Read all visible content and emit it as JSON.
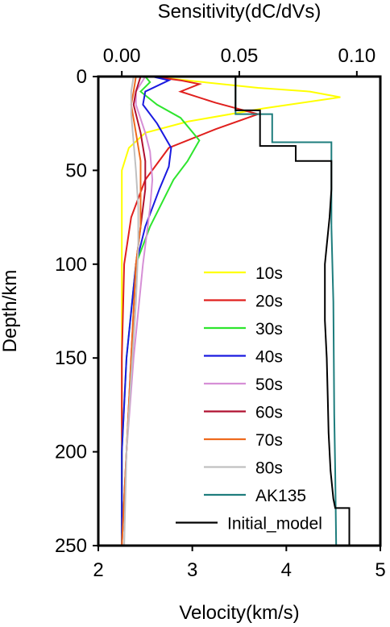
{
  "chart_data": {
    "type": "line",
    "title": "",
    "axes": {
      "top_x": {
        "label": "Sensitivity(dC/dVs)",
        "range": [
          -0.01,
          0.11
        ],
        "ticks": [
          0.0,
          0.05,
          0.1
        ],
        "tick_labels": [
          "0.00",
          "0.05",
          "0.10"
        ]
      },
      "bottom_x": {
        "label": "Velocity(km/s)",
        "range": [
          2,
          5
        ],
        "ticks": [
          2,
          3,
          4,
          5
        ],
        "tick_labels": [
          "2",
          "3",
          "4",
          "5"
        ]
      },
      "y": {
        "label": "Depth/km",
        "range": [
          0,
          250
        ],
        "inverted": true,
        "ticks": [
          0,
          50,
          100,
          150,
          200,
          250
        ],
        "tick_labels": [
          "0",
          "50",
          "100",
          "150",
          "200",
          "250"
        ]
      }
    },
    "grid": false,
    "legend_position": "right",
    "sensitivity_series": [
      {
        "name": "10s",
        "color": "#ffff00",
        "points": [
          [
            0.013,
            0
          ],
          [
            0.035,
            3
          ],
          [
            0.058,
            6
          ],
          [
            0.08,
            8
          ],
          [
            0.093,
            11
          ],
          [
            0.06,
            17
          ],
          [
            0.028,
            24
          ],
          [
            0.01,
            30
          ],
          [
            0.003,
            38
          ],
          [
            0.0,
            50
          ],
          [
            0.0,
            70
          ],
          [
            0.0,
            100
          ],
          [
            0.0,
            150
          ],
          [
            0.0,
            200
          ],
          [
            0.0,
            250
          ]
        ]
      },
      {
        "name": "20s",
        "color": "#e0201e",
        "points": [
          [
            0.013,
            0
          ],
          [
            0.025,
            2
          ],
          [
            0.033,
            4
          ],
          [
            0.025,
            8
          ],
          [
            0.04,
            14
          ],
          [
            0.058,
            20
          ],
          [
            0.04,
            28
          ],
          [
            0.02,
            38
          ],
          [
            0.01,
            55
          ],
          [
            0.004,
            75
          ],
          [
            0.001,
            100
          ],
          [
            0.0,
            150
          ],
          [
            0.0,
            200
          ],
          [
            0.0,
            250
          ]
        ]
      },
      {
        "name": "30s",
        "color": "#2ee52e",
        "points": [
          [
            0.01,
            0
          ],
          [
            0.012,
            3
          ],
          [
            0.008,
            8
          ],
          [
            0.015,
            15
          ],
          [
            0.025,
            22
          ],
          [
            0.033,
            34
          ],
          [
            0.028,
            45
          ],
          [
            0.022,
            55
          ],
          [
            0.012,
            80
          ],
          [
            0.006,
            100
          ],
          [
            0.002,
            150
          ],
          [
            0.0,
            200
          ],
          [
            0.0,
            250
          ]
        ]
      },
      {
        "name": "40s",
        "color": "#1a1ae0",
        "points": [
          [
            0.013,
            0
          ],
          [
            0.02,
            2
          ],
          [
            0.01,
            8
          ],
          [
            0.009,
            15
          ],
          [
            0.015,
            25
          ],
          [
            0.021,
            38
          ],
          [
            0.02,
            48
          ],
          [
            0.016,
            60
          ],
          [
            0.01,
            80
          ],
          [
            0.006,
            100
          ],
          [
            0.002,
            150
          ],
          [
            0.0,
            200
          ],
          [
            0.0,
            250
          ]
        ]
      },
      {
        "name": "50s",
        "color": "#d68fd6",
        "points": [
          [
            0.01,
            0
          ],
          [
            0.006,
            8
          ],
          [
            0.006,
            15
          ],
          [
            0.01,
            30
          ],
          [
            0.012,
            40
          ],
          [
            0.013,
            55
          ],
          [
            0.012,
            70
          ],
          [
            0.009,
            100
          ],
          [
            0.005,
            150
          ],
          [
            0.002,
            200
          ],
          [
            0.0,
            250
          ]
        ]
      },
      {
        "name": "60s",
        "color": "#b01030",
        "points": [
          [
            0.008,
            0
          ],
          [
            0.006,
            8
          ],
          [
            0.005,
            15
          ],
          [
            0.008,
            30
          ],
          [
            0.01,
            45
          ],
          [
            0.01,
            60
          ],
          [
            0.008,
            80
          ],
          [
            0.006,
            100
          ],
          [
            0.004,
            150
          ],
          [
            0.002,
            200
          ],
          [
            0.0,
            250
          ]
        ]
      },
      {
        "name": "70s",
        "color": "#ee6a1e",
        "points": [
          [
            0.006,
            0
          ],
          [
            0.005,
            8
          ],
          [
            0.004,
            15
          ],
          [
            0.006,
            30
          ],
          [
            0.008,
            45
          ],
          [
            0.008,
            60
          ],
          [
            0.008,
            80
          ],
          [
            0.006,
            100
          ],
          [
            0.004,
            150
          ],
          [
            0.002,
            200
          ],
          [
            0.0,
            250
          ]
        ]
      },
      {
        "name": "80s",
        "color": "#c0c0c0",
        "points": [
          [
            0.005,
            0
          ],
          [
            0.004,
            8
          ],
          [
            0.004,
            20
          ],
          [
            0.005,
            35
          ],
          [
            0.006,
            50
          ],
          [
            0.007,
            70
          ],
          [
            0.007,
            90
          ],
          [
            0.006,
            120
          ],
          [
            0.004,
            160
          ],
          [
            0.002,
            200
          ],
          [
            0.001,
            250
          ]
        ]
      }
    ],
    "velocity_series": [
      {
        "name": "AK135",
        "color": "#1e7d7d",
        "points": [
          [
            3.46,
            0
          ],
          [
            3.46,
            20
          ],
          [
            3.85,
            20
          ],
          [
            3.85,
            35
          ],
          [
            4.48,
            35
          ],
          [
            4.48,
            80
          ],
          [
            4.5,
            120
          ],
          [
            4.51,
            180
          ],
          [
            4.52,
            210
          ],
          [
            4.53,
            250
          ]
        ]
      },
      {
        "name": "Initial_model",
        "color": "#000000",
        "points": [
          [
            3.46,
            0
          ],
          [
            3.46,
            18
          ],
          [
            3.72,
            18
          ],
          [
            3.72,
            37
          ],
          [
            4.1,
            37
          ],
          [
            4.1,
            45
          ],
          [
            4.48,
            45
          ],
          [
            4.48,
            60
          ],
          [
            4.46,
            75
          ],
          [
            4.43,
            90
          ],
          [
            4.41,
            100
          ],
          [
            4.41,
            130
          ],
          [
            4.43,
            150
          ],
          [
            4.44,
            170
          ],
          [
            4.45,
            190
          ],
          [
            4.47,
            210
          ],
          [
            4.5,
            225
          ],
          [
            4.52,
            230
          ],
          [
            4.67,
            230
          ],
          [
            4.67,
            250
          ]
        ]
      }
    ]
  }
}
